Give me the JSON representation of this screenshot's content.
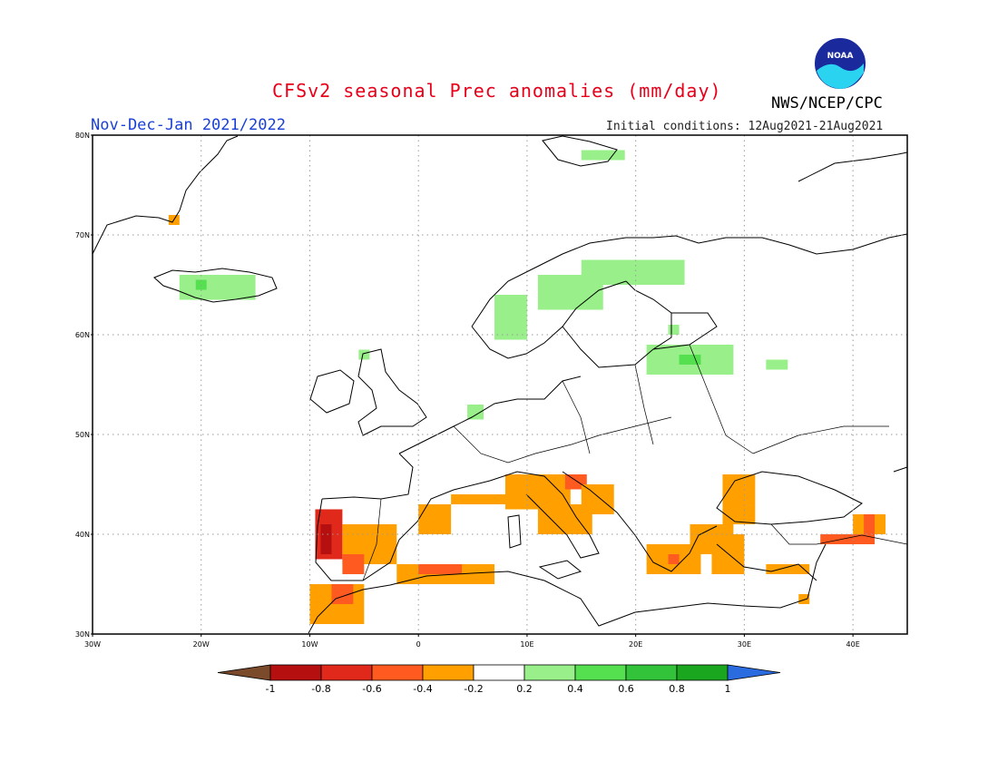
{
  "header": {
    "title": "CFSv2 seasonal Prec anomalies (mm/day)",
    "organization": "NWS/NCEP/CPC",
    "season": "Nov-Dec-Jan 2021/2022",
    "initial_conditions": "Initial conditions: 12Aug2021-21Aug2021"
  },
  "logo": {
    "icon": "noaa-logo-icon",
    "text": "NOAA"
  },
  "axes": {
    "lat_labels": [
      "80N",
      "70N",
      "60N",
      "50N",
      "40N",
      "30N"
    ],
    "lon_labels": [
      "30W",
      "20W",
      "10W",
      "0",
      "10E",
      "20E",
      "30E",
      "40E"
    ]
  },
  "colorbar": {
    "labels": [
      "-1",
      "-0.8",
      "-0.6",
      "-0.4",
      "-0.2",
      "0.2",
      "0.4",
      "0.6",
      "0.8",
      "1"
    ],
    "colors": {
      "below_min": "#7a4a2a",
      "bins": [
        "#b50f0f",
        "#e0281b",
        "#ff5a1f",
        "#ffa000",
        "#ffffff",
        "#99f08a",
        "#55e050",
        "#33c33a",
        "#1aa71f"
      ],
      "above_max": "#2a6be0"
    }
  },
  "map_data": {
    "lat_range": [
      30,
      80
    ],
    "lon_range": [
      -30,
      45
    ],
    "regions": [
      {
        "name": "Iceland wet",
        "lon": [
          -22,
          -15
        ],
        "lat": [
          63.5,
          66
        ],
        "color": "#99f08a"
      },
      {
        "name": "Iceland core",
        "lon": [
          -20.5,
          -19.5
        ],
        "lat": [
          64.5,
          65.5
        ],
        "color": "#55e050"
      },
      {
        "name": "Greenland tip",
        "lon": [
          -23,
          -22
        ],
        "lat": [
          71,
          72
        ],
        "color": "#ffa000"
      },
      {
        "name": "Svalbard",
        "lon": [
          15,
          19
        ],
        "lat": [
          77.5,
          78.5
        ],
        "color": "#99f08a"
      },
      {
        "name": "Scotland",
        "lon": [
          -5.5,
          -4.5
        ],
        "lat": [
          57.5,
          58.5
        ],
        "color": "#99f08a"
      },
      {
        "name": "Netherlands",
        "lon": [
          4.5,
          6
        ],
        "lat": [
          51.5,
          53
        ],
        "color": "#99f08a"
      },
      {
        "name": "Norway coast",
        "lon": [
          7,
          10
        ],
        "lat": [
          59.5,
          64
        ],
        "color": "#99f08a"
      },
      {
        "name": "Norway north",
        "lon": [
          11,
          17
        ],
        "lat": [
          62.5,
          66
        ],
        "color": "#99f08a"
      },
      {
        "name": "Scandinavia north",
        "lon": [
          15,
          24.5
        ],
        "lat": [
          65,
          67.5
        ],
        "color": "#99f08a"
      },
      {
        "name": "Finland",
        "lon": [
          23,
          24
        ],
        "lat": [
          60,
          61
        ],
        "color": "#99f08a"
      },
      {
        "name": "Baltics",
        "lon": [
          21,
          29
        ],
        "lat": [
          56,
          59
        ],
        "color": "#99f08a"
      },
      {
        "name": "Baltics core",
        "lon": [
          24,
          26
        ],
        "lat": [
          57,
          58
        ],
        "color": "#55e050"
      },
      {
        "name": "Russia west",
        "lon": [
          32,
          34
        ],
        "lat": [
          56.5,
          57.5
        ],
        "color": "#99f08a"
      },
      {
        "name": "Iberia west",
        "lon": [
          -9.5,
          -7
        ],
        "lat": [
          37.5,
          42.5
        ],
        "color": "#e0281b"
      },
      {
        "name": "Iberia west core",
        "lon": [
          -9,
          -8
        ],
        "lat": [
          38,
          41
        ],
        "color": "#b50f0f"
      },
      {
        "name": "Iberia interior",
        "lon": [
          -7,
          -2
        ],
        "lat": [
          37,
          41
        ],
        "color": "#ffa000"
      },
      {
        "name": "Iberia south",
        "lon": [
          -7,
          -5
        ],
        "lat": [
          36,
          38
        ],
        "color": "#ff5a1f"
      },
      {
        "name": "Morocco",
        "lon": [
          -10,
          -5
        ],
        "lat": [
          31,
          35
        ],
        "color": "#ffa000"
      },
      {
        "name": "Morocco red",
        "lon": [
          -8,
          -6
        ],
        "lat": [
          33,
          35
        ],
        "color": "#ff5a1f"
      },
      {
        "name": "Algeria coast",
        "lon": [
          -2,
          7
        ],
        "lat": [
          35,
          37
        ],
        "color": "#ffa000"
      },
      {
        "name": "Algeria red",
        "lon": [
          0,
          4
        ],
        "lat": [
          36,
          37
        ],
        "color": "#ff5a1f"
      },
      {
        "name": "Spain east",
        "lon": [
          0,
          3
        ],
        "lat": [
          40,
          43
        ],
        "color": "#ffa000"
      },
      {
        "name": "France south",
        "lon": [
          3,
          9
        ],
        "lat": [
          43,
          44
        ],
        "color": "#ffa000"
      },
      {
        "name": "Italy north",
        "lon": [
          8,
          14
        ],
        "lat": [
          42.5,
          46
        ],
        "color": "#ffa000"
      },
      {
        "name": "Italy central",
        "lon": [
          11,
          16
        ],
        "lat": [
          40,
          43
        ],
        "color": "#ffa000"
      },
      {
        "name": "Adriatic",
        "lon": [
          13.5,
          15.5
        ],
        "lat": [
          44.5,
          46
        ],
        "color": "#ff5a1f"
      },
      {
        "name": "Balkan coast",
        "lon": [
          15,
          18
        ],
        "lat": [
          42,
          45
        ],
        "color": "#ffa000"
      },
      {
        "name": "Greece",
        "lon": [
          21,
          26
        ],
        "lat": [
          36,
          39
        ],
        "color": "#ffa000"
      },
      {
        "name": "Greece red",
        "lon": [
          23,
          24
        ],
        "lat": [
          37,
          38
        ],
        "color": "#ff5a1f"
      },
      {
        "name": "Aegean",
        "lon": [
          25,
          29
        ],
        "lat": [
          38,
          41
        ],
        "color": "#ffa000"
      },
      {
        "name": "Turkey west",
        "lon": [
          27,
          30
        ],
        "lat": [
          36,
          40
        ],
        "color": "#ffa000"
      },
      {
        "name": "Black Sea west",
        "lon": [
          28,
          31
        ],
        "lat": [
          41,
          46
        ],
        "color": "#ffa000"
      },
      {
        "name": "Turkey south",
        "lon": [
          32,
          36
        ],
        "lat": [
          36,
          37
        ],
        "color": "#ffa000"
      },
      {
        "name": "Turkey east",
        "lon": [
          37,
          42
        ],
        "lat": [
          39,
          40
        ],
        "color": "#ff5a1f"
      },
      {
        "name": "Georgia",
        "lon": [
          40,
          43
        ],
        "lat": [
          40,
          42
        ],
        "color": "#ffa000"
      },
      {
        "name": "Georgia red",
        "lon": [
          41,
          42
        ],
        "lat": [
          40,
          42
        ],
        "color": "#ff5a1f"
      },
      {
        "name": "Levant",
        "lon": [
          35,
          36
        ],
        "lat": [
          33,
          34
        ],
        "color": "#ffa000"
      }
    ]
  }
}
